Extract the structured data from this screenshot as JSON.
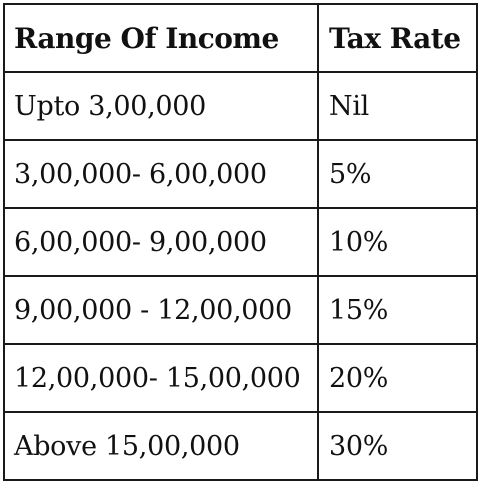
{
  "table": {
    "headers": [
      "Range Of Income",
      "Tax Rate"
    ],
    "rows": [
      [
        "Upto 3,00,000",
        "Nil"
      ],
      [
        "3,00,000- 6,00,000",
        "5%"
      ],
      [
        "6,00,000- 9,00,000",
        "10%"
      ],
      [
        "9,00,000 - 12,00,000",
        "15%"
      ],
      [
        "12,00,000- 15,00,000",
        "20%"
      ],
      [
        "Above 15,00,000",
        "30%"
      ]
    ]
  }
}
